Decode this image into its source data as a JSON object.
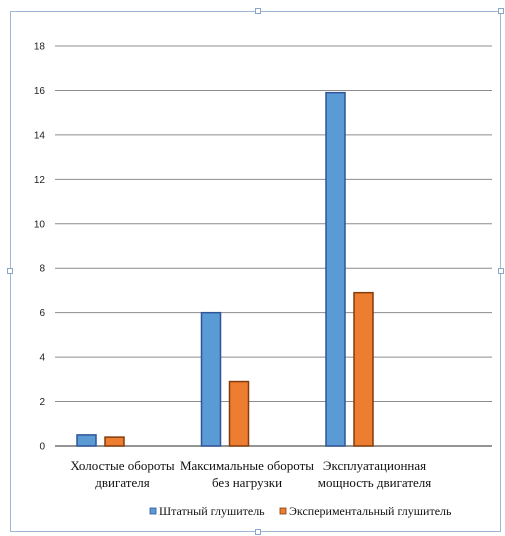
{
  "chart_data": {
    "type": "bar",
    "title": "",
    "xlabel": "",
    "ylabel": "",
    "categories": [
      [
        "Холостые обороты",
        "двигателя"
      ],
      [
        "Максимальные обороты",
        "без нагрузки"
      ],
      [
        "Эксплуатационная",
        "мощность двигателя"
      ]
    ],
    "series": [
      {
        "name": "Штатный глушитель",
        "values": [
          0.5,
          6,
          15.9
        ],
        "color": "#5b9bd5",
        "stroke": "#2f5597"
      },
      {
        "name": "Экспериментальный глушитель",
        "values": [
          0.4,
          2.9,
          6.9
        ],
        "color": "#ed7d31",
        "stroke": "#843c0c"
      }
    ],
    "ylim": [
      0,
      18
    ],
    "yticks": [
      0,
      2,
      4,
      6,
      8,
      10,
      12,
      14,
      16,
      18
    ],
    "grid": true,
    "legend": "bottom"
  }
}
